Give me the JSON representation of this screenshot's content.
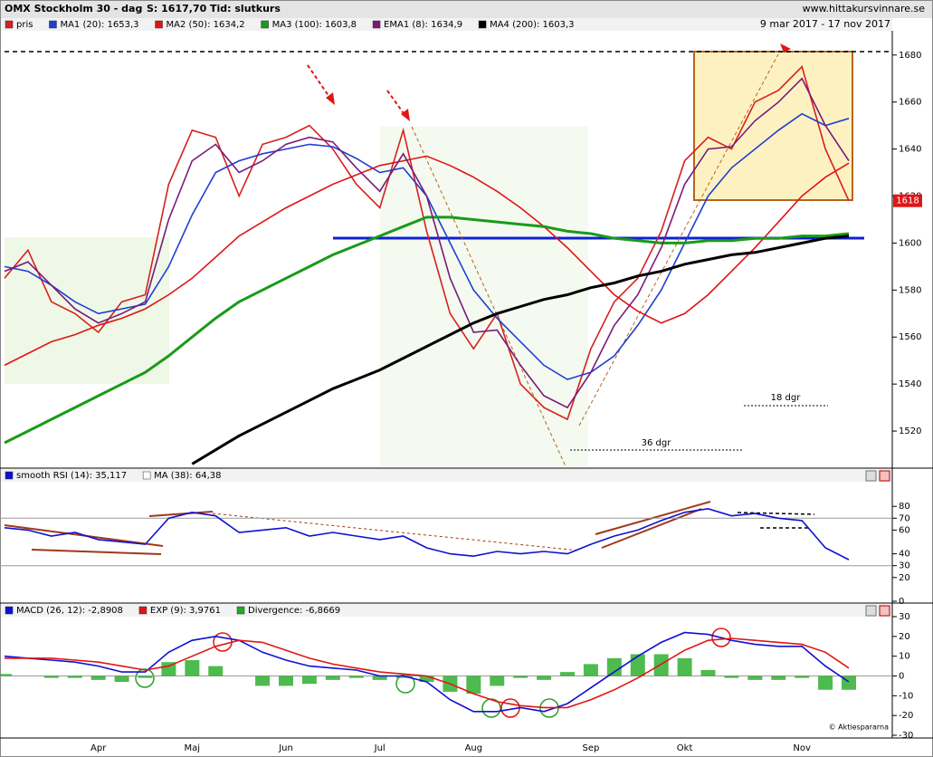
{
  "chart_data": [
    {
      "type": "line",
      "title": "OMX Stockholm 30 - dag",
      "info": [
        "S: 1617,70",
        "Tid: slutkurs"
      ],
      "source": "www.hittakursvinnare.se",
      "subtitle": "9 mar 2017 - 17 nov 2017",
      "categories": [
        null,
        null,
        null,
        null,
        "Apr",
        null,
        null,
        null,
        "Maj",
        null,
        null,
        null,
        "Jun",
        null,
        null,
        null,
        "Jul",
        null,
        null,
        null,
        "Aug",
        null,
        null,
        null,
        null,
        "Sep",
        null,
        null,
        null,
        "Okt",
        null,
        null,
        null,
        null,
        "Nov",
        null,
        null
      ],
      "series": [
        {
          "name": "pris",
          "color": "#d62020",
          "values": [
            1585,
            1597,
            1575,
            1570,
            1562,
            1575,
            1578,
            1625,
            1648,
            1645,
            1620,
            1642,
            1645,
            1650,
            1640,
            1625,
            1615,
            1648,
            1605,
            1570,
            1555,
            1570,
            1540,
            1530,
            1525,
            1555,
            1575,
            1585,
            1605,
            1635,
            1645,
            1640,
            1660,
            1665,
            1675,
            1640,
            1618
          ]
        },
        {
          "name": "MA1 (20): 1653,3",
          "color": "#1f3fd0",
          "values": [
            1590,
            1588,
            1582,
            1575,
            1570,
            1572,
            1574,
            1590,
            1612,
            1630,
            1635,
            1638,
            1640,
            1642,
            1641,
            1636,
            1630,
            1632,
            1620,
            1600,
            1580,
            1568,
            1558,
            1548,
            1542,
            1545,
            1552,
            1565,
            1580,
            1600,
            1620,
            1632,
            1640,
            1648,
            1655,
            1650,
            1653
          ]
        },
        {
          "name": "MA2 (50): 1634,2",
          "color": "#e01515",
          "values": [
            1548,
            1553,
            1558,
            1561,
            1565,
            1568,
            1572,
            1578,
            1585,
            1594,
            1603,
            1609,
            1615,
            1620,
            1625,
            1629,
            1633,
            1635,
            1637,
            1633,
            1628,
            1622,
            1615,
            1607,
            1598,
            1588,
            1578,
            1571,
            1566,
            1570,
            1578,
            1588,
            1598,
            1609,
            1620,
            1628,
            1634
          ]
        },
        {
          "name": "MA3 (100): 1603,8",
          "color": "#1a9a1a",
          "values": [
            1515,
            1520,
            1525,
            1530,
            1535,
            1540,
            1545,
            1552,
            1560,
            1568,
            1575,
            1580,
            1585,
            1590,
            1595,
            1599,
            1603,
            1607,
            1611,
            1611,
            1610,
            1609,
            1608,
            1607,
            1605,
            1604,
            1602,
            1601,
            1600,
            1600,
            1601,
            1601,
            1602,
            1602,
            1603,
            1603,
            1604
          ]
        },
        {
          "name": "EMA1 (8): 1634,9",
          "color": "#7a1a7a",
          "values": [
            1588,
            1592,
            1582,
            1572,
            1566,
            1570,
            1575,
            1610,
            1635,
            1642,
            1630,
            1635,
            1642,
            1645,
            1643,
            1632,
            1622,
            1638,
            1620,
            1585,
            1562,
            1563,
            1548,
            1535,
            1530,
            1545,
            1565,
            1578,
            1598,
            1625,
            1640,
            1641,
            1652,
            1660,
            1670,
            1650,
            1635
          ]
        },
        {
          "name": "MA4 (200): 1603,3",
          "color": "#000000",
          "values": [
            null,
            null,
            null,
            null,
            null,
            null,
            null,
            null,
            1506,
            1512,
            1518,
            1523,
            1528,
            1533,
            1538,
            1542,
            1546,
            1551,
            1556,
            1561,
            1566,
            1570,
            1573,
            1576,
            1578,
            1581,
            1583,
            1586,
            1588,
            1591,
            1593,
            1595,
            1596,
            1598,
            1600,
            1602,
            1603
          ]
        }
      ],
      "last_value": 1618,
      "last_color": "#e01515",
      "annotations": [
        "18 dgr",
        "36 dgr"
      ],
      "ylim": [
        1505,
        1688
      ],
      "yticks": [
        1520,
        1540,
        1560,
        1580,
        1600,
        1620,
        1640,
        1660,
        1680
      ]
    },
    {
      "type": "line",
      "series": [
        {
          "name": "smooth RSI (14): 35,117",
          "color": "#1010d0",
          "values": [
            62,
            60,
            55,
            58,
            52,
            50,
            48,
            70,
            75,
            72,
            58,
            60,
            62,
            55,
            58,
            55,
            52,
            55,
            45,
            40,
            38,
            42,
            40,
            42,
            40,
            48,
            55,
            60,
            68,
            75,
            78,
            72,
            74,
            70,
            68,
            45,
            35
          ]
        }
      ],
      "legend_extra": [
        {
          "name": "MA (38): 64,38",
          "color": "#ffffff"
        }
      ],
      "reference_lines": [
        30,
        70
      ],
      "ylim": [
        0,
        100
      ],
      "yticks": [
        0,
        20,
        30,
        40,
        60,
        70,
        80
      ]
    },
    {
      "type": "line",
      "series": [
        {
          "name": "MACD (26, 12): -2,8908",
          "color": "#1010d0",
          "values": [
            10,
            9,
            8,
            7,
            5,
            2,
            2,
            12,
            18,
            20,
            18,
            12,
            8,
            5,
            4,
            3,
            0,
            0,
            -3,
            -12,
            -18,
            -18,
            -16,
            -18,
            -14,
            -6,
            2,
            10,
            17,
            22,
            21,
            18,
            16,
            15,
            15,
            5,
            -3
          ]
        },
        {
          "name": "EXP (9): 3,9761",
          "color": "#e01515",
          "values": [
            9,
            9,
            9,
            8,
            7,
            5,
            3,
            5,
            10,
            15,
            18,
            17,
            13,
            9,
            6,
            4,
            2,
            1,
            0,
            -4,
            -9,
            -13,
            -15,
            -16,
            -16,
            -12,
            -7,
            -1,
            6,
            13,
            18,
            19,
            18,
            17,
            16,
            12,
            4
          ]
        },
        {
          "name": "Divergence: -6,8669",
          "color": "#22aa22",
          "type": "bar",
          "values": [
            1,
            0,
            -1,
            -1,
            -2,
            -3,
            -1,
            7,
            8,
            5,
            0,
            -5,
            -5,
            -4,
            -2,
            -1,
            -2,
            -1,
            -3,
            -8,
            -9,
            -5,
            -1,
            -2,
            2,
            6,
            9,
            11,
            11,
            9,
            3,
            -1,
            -2,
            -2,
            -1,
            -7,
            -7
          ]
        }
      ],
      "credit": "© Aktiespararna",
      "reference_lines": [
        0
      ],
      "ylim": [
        -30,
        30
      ],
      "yticks": [
        -30,
        -20,
        -10,
        0,
        10,
        20,
        30
      ]
    }
  ]
}
